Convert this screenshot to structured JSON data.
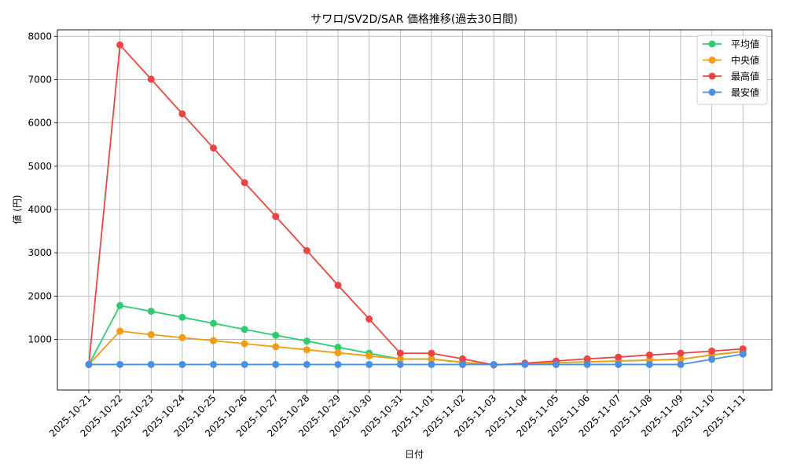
{
  "chart_data": {
    "type": "line",
    "title": "サワロ/SV2D/SAR 価格推移(過去30日間)",
    "xlabel": "日付",
    "ylabel": "値 (円)",
    "categories": [
      "2025-10-21",
      "2025-10-22",
      "2025-10-23",
      "2025-10-24",
      "2025-10-25",
      "2025-10-26",
      "2025-10-27",
      "2025-10-28",
      "2025-10-29",
      "2025-10-30",
      "2025-10-31",
      "2025-11-01",
      "2025-11-02",
      "2025-11-03",
      "2025-11-04",
      "2025-11-05",
      "2025-11-06",
      "2025-11-07",
      "2025-11-08",
      "2025-11-09",
      "2025-11-10",
      "2025-11-11"
    ],
    "y_ticks": [
      1000,
      2000,
      3000,
      4000,
      5000,
      6000,
      7000,
      8000
    ],
    "ylim": [
      -170,
      8150
    ],
    "grid": true,
    "legend_position": "top-right",
    "series": [
      {
        "name": "平均値",
        "color": "#2ecc71",
        "values": [
          420,
          1780,
          1650,
          1510,
          1370,
          1230,
          1095,
          960,
          820,
          680,
          545,
          545,
          470,
          410,
          430,
          460,
          480,
          500,
          520,
          540,
          640,
          720
        ]
      },
      {
        "name": "中央値",
        "color": "#f39c12",
        "values": [
          420,
          1190,
          1110,
          1040,
          970,
          900,
          830,
          760,
          690,
          620,
          545,
          545,
          470,
          410,
          430,
          460,
          480,
          500,
          520,
          540,
          640,
          720
        ]
      },
      {
        "name": "最高値",
        "color": "#ef4444",
        "values": [
          420,
          7800,
          7010,
          6210,
          5420,
          4620,
          3840,
          3050,
          2250,
          1470,
          680,
          680,
          550,
          410,
          450,
          500,
          550,
          590,
          640,
          680,
          730,
          780
        ]
      },
      {
        "name": "最安値",
        "color": "#4a90e2",
        "values": [
          420,
          420,
          420,
          420,
          420,
          420,
          420,
          420,
          420,
          420,
          420,
          420,
          420,
          420,
          420,
          420,
          420,
          420,
          420,
          420,
          540,
          660
        ]
      }
    ]
  }
}
